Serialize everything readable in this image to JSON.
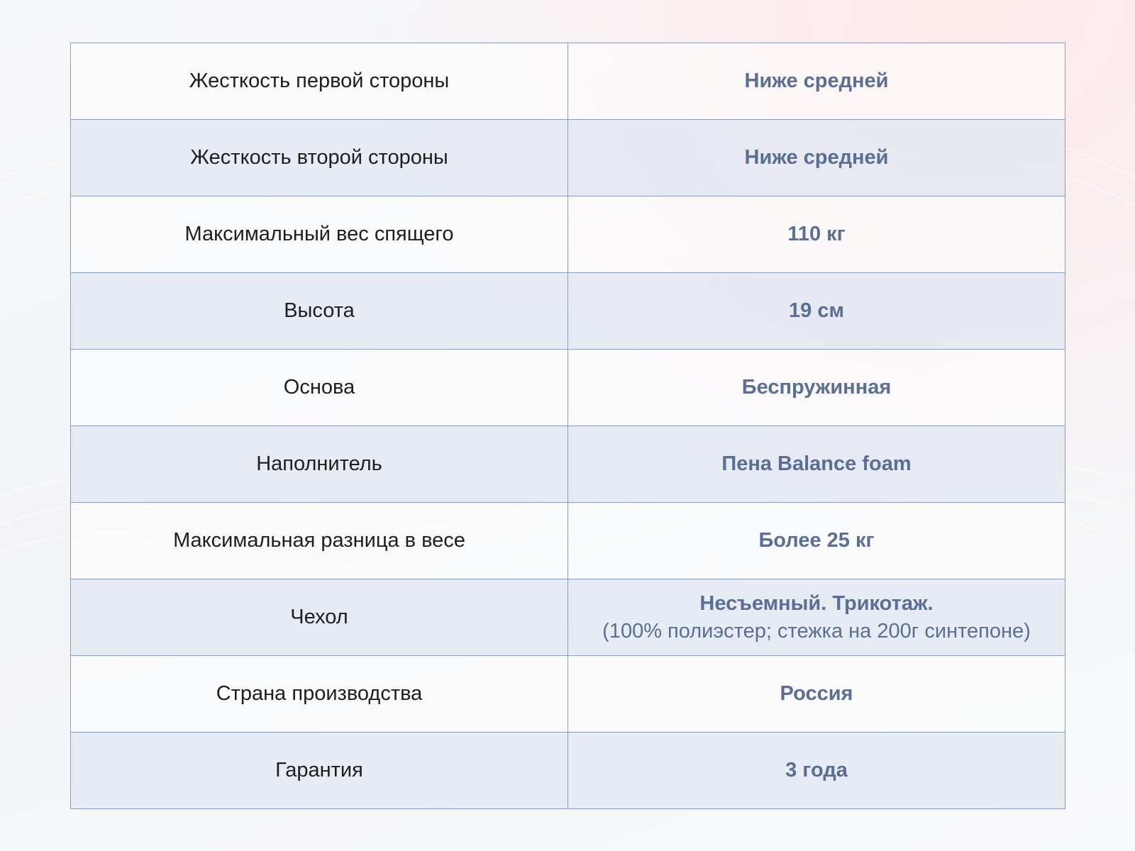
{
  "colors": {
    "value_text": "#5a6f95",
    "label_text": "#1e1e1e",
    "border": "#8a9cc0",
    "stripe": "#e2e7f1"
  },
  "rows": [
    {
      "label": "Жесткость первой стороны",
      "value": "Ниже средней"
    },
    {
      "label": "Жесткость второй стороны",
      "value": "Ниже средней"
    },
    {
      "label": "Максимальный вес спящего",
      "value": "110 кг"
    },
    {
      "label": "Высота",
      "value": "19 см"
    },
    {
      "label": "Основа",
      "value": "Беспружинная"
    },
    {
      "label": "Наполнитель",
      "value": "Пена Balance foam"
    },
    {
      "label": "Максимальная разница в весе",
      "value": "Более 25 кг"
    },
    {
      "label": "Чехол",
      "value": "Несъемный. Трикотаж.",
      "value_note": "(100% полиэстер; стежка на 200г синтепоне)"
    },
    {
      "label": "Страна производства",
      "value": "Россия"
    },
    {
      "label": "Гарантия",
      "value": "3 года"
    }
  ]
}
